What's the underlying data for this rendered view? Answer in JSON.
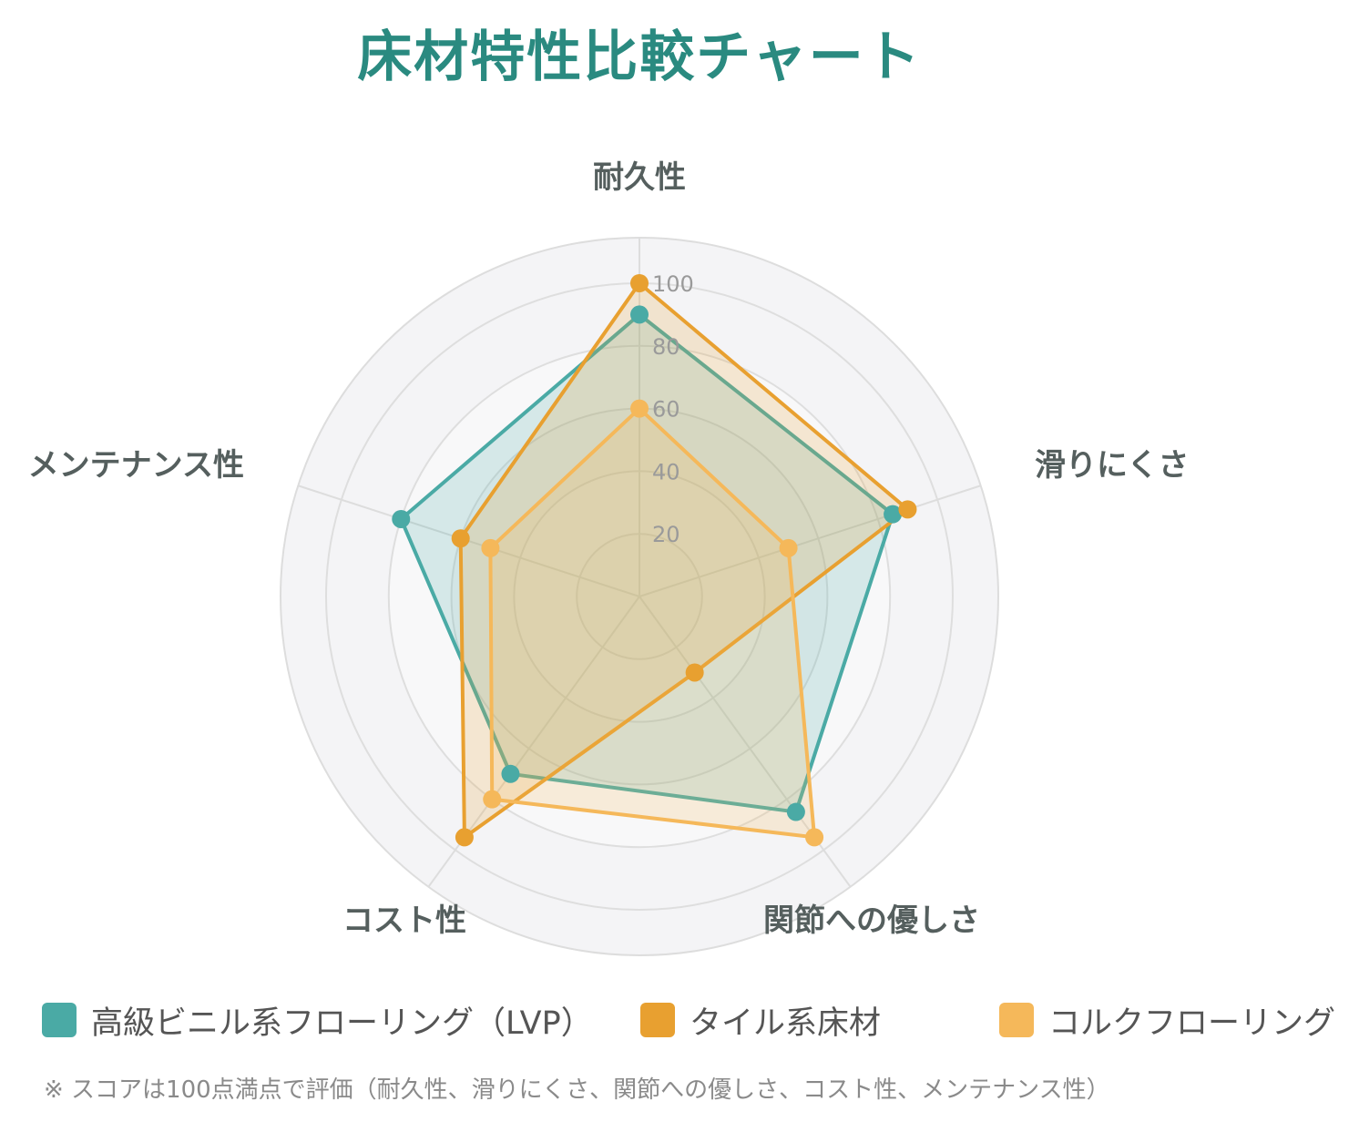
{
  "title": "床材特性比較チャート",
  "chart_data": {
    "type": "radar",
    "title": "床材特性比較チャート",
    "axes": [
      "耐久性",
      "滑りにくさ",
      "関節への優しさ",
      "コスト性",
      "メンテナンス性"
    ],
    "r_range": [
      0,
      100
    ],
    "r_ticks": [
      "20",
      "40",
      "60",
      "80",
      "100"
    ],
    "grid": true,
    "legend_position": "bottom",
    "series": [
      {
        "name": "高級ビニル系フローリング（LVP）",
        "color": "#4aaaa5",
        "values": [
          90,
          85,
          85,
          70,
          80
        ]
      },
      {
        "name": "タイル系床材",
        "color": "#e8a030",
        "values": [
          100,
          90,
          30,
          95,
          60
        ]
      },
      {
        "name": "コルクフローリング",
        "color": "#f5b85a",
        "values": [
          60,
          50,
          95,
          80,
          50
        ]
      }
    ]
  },
  "footnote": "※ スコアは100点満点で評価（耐久性、滑りにくさ、関節への優しさ、コスト性、メンテナンス性）"
}
